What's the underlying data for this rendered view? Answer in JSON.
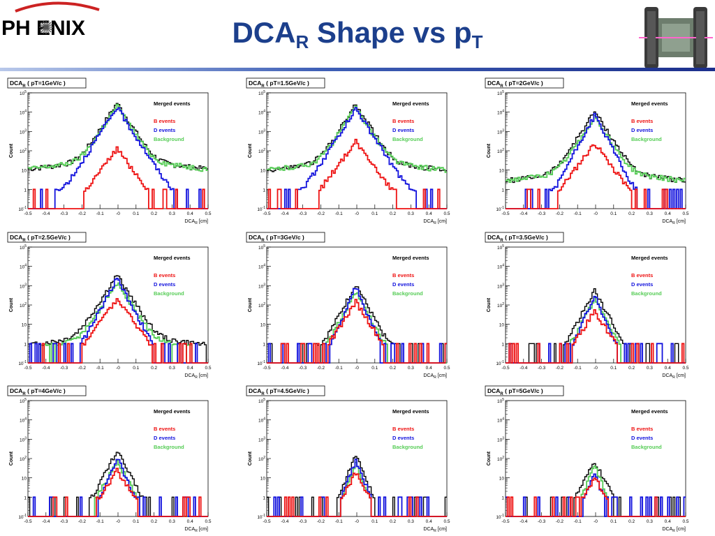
{
  "header": {
    "logo_text": "PH   ENIX",
    "title_main": "DCA",
    "title_sub1": "R",
    "title_mid": " Shape vs p",
    "title_sub2": "T"
  },
  "legend": {
    "merged": "Merged events",
    "b": "B events",
    "d": "D events",
    "bkg": "Background"
  },
  "colors": {
    "merged": "#000000",
    "b": "#ee1111",
    "d": "#1111dd",
    "bkg": "#55cc55",
    "title_blue": "#1c3f8c"
  },
  "chart_data": [
    {
      "type": "line",
      "title": "DCA_R ( pT=1GeV/c )",
      "title_main": "DCA",
      "title_sub": "R",
      "title_rest": "  ( pT=1GeV/c )",
      "xlabel": "DCA_R [cm]",
      "ylabel": "Count",
      "yscale": "log",
      "xlim": [
        -0.5,
        0.5
      ],
      "ylim": [
        0.1,
        100000
      ],
      "xticks": [
        "-0.5",
        "-0.4",
        "-0.3",
        "-0.2",
        "-0.1",
        "-0",
        "0.1",
        "0.2",
        "0.3",
        "0.4",
        "0.5"
      ],
      "yticks": [
        "10^-1",
        "1",
        "10",
        "10^2",
        "10^3",
        "10^4",
        "10^5"
      ],
      "series": {
        "merged": {
          "peak": 30000,
          "width": 0.03,
          "tail": 40,
          "tailw": 0.4
        },
        "b": {
          "peak": 130,
          "width": 0.035,
          "tail": 0,
          "tailw": 0.4
        },
        "d": {
          "peak": 18000,
          "width": 0.03,
          "tail": 1,
          "tailw": 0.4
        },
        "bkg": {
          "peak": 22000,
          "width": 0.03,
          "tail": 40,
          "tailw": 0.4
        }
      }
    },
    {
      "type": "line",
      "title": "DCA_R ( pT=1.5GeV/c )",
      "title_main": "DCA",
      "title_sub": "R",
      "title_rest": "  ( pT=1.5GeV/c )",
      "xlabel": "DCA_R [cm]",
      "ylabel": "Count",
      "yscale": "log",
      "xlim": [
        -0.5,
        0.5
      ],
      "ylim": [
        0.1,
        100000
      ],
      "xticks": [
        "-0.5",
        "-0.4",
        "-0.3",
        "-0.2",
        "-0.1",
        "-0",
        "0.1",
        "0.2",
        "0.3",
        "0.4",
        "0.5"
      ],
      "yticks": [
        "10^-1",
        "1",
        "10",
        "10^2",
        "10^3",
        "10^4",
        "10^5"
      ],
      "series": {
        "merged": {
          "peak": 25000,
          "width": 0.03,
          "tail": 35,
          "tailw": 0.4
        },
        "b": {
          "peak": 300,
          "width": 0.035,
          "tail": 0,
          "tailw": 0.4
        },
        "d": {
          "peak": 15000,
          "width": 0.03,
          "tail": 1,
          "tailw": 0.4
        },
        "bkg": {
          "peak": 18000,
          "width": 0.03,
          "tail": 35,
          "tailw": 0.4
        }
      }
    },
    {
      "type": "line",
      "title": "DCA_R ( pT=2GeV/c )",
      "title_main": "DCA",
      "title_sub": "R",
      "title_rest": "  ( pT=2GeV/c )",
      "xlabel": "DCA_R [cm]",
      "ylabel": "Count",
      "yscale": "log",
      "xlim": [
        -0.5,
        0.5
      ],
      "ylim": [
        0.1,
        100000
      ],
      "xticks": [
        "-0.5",
        "-0.4",
        "-0.3",
        "-0.2",
        "-0.1",
        "-0",
        "0.1",
        "0.2",
        "0.3",
        "0.4",
        "0.5"
      ],
      "yticks": [
        "10^-1",
        "1",
        "10",
        "10^2",
        "10^3",
        "10^4",
        "10^5"
      ],
      "series": {
        "merged": {
          "peak": 11000,
          "width": 0.03,
          "tail": 10,
          "tailw": 0.4
        },
        "b": {
          "peak": 250,
          "width": 0.035,
          "tail": 0,
          "tailw": 0.4
        },
        "d": {
          "peak": 7000,
          "width": 0.025,
          "tail": 0.5,
          "tailw": 0.4
        },
        "bkg": {
          "peak": 6000,
          "width": 0.03,
          "tail": 10,
          "tailw": 0.4
        }
      }
    },
    {
      "type": "line",
      "title": "DCA_R ( pT=2.5GeV/c )",
      "title_main": "DCA",
      "title_sub": "R",
      "title_rest": "  ( pT=2.5GeV/c )",
      "xlabel": "DCA_R [cm]",
      "ylabel": "Count",
      "yscale": "log",
      "xlim": [
        -0.5,
        0.5
      ],
      "ylim": [
        0.1,
        100000
      ],
      "xticks": [
        "-0.5",
        "-0.4",
        "-0.3",
        "-0.2",
        "-0.1",
        "-0",
        "0.1",
        "0.2",
        "0.3",
        "0.4",
        "0.5"
      ],
      "yticks": [
        "10^-1",
        "1",
        "10",
        "10^2",
        "10^3",
        "10^4",
        "10^5"
      ],
      "series": {
        "merged": {
          "peak": 3500,
          "width": 0.03,
          "tail": 3,
          "tailw": 0.4
        },
        "b": {
          "peak": 200,
          "width": 0.035,
          "tail": 0,
          "tailw": 0.4
        },
        "d": {
          "peak": 2500,
          "width": 0.025,
          "tail": 0.3,
          "tailw": 0.4
        },
        "bkg": {
          "peak": 1500,
          "width": 0.03,
          "tail": 2,
          "tailw": 0.4
        }
      }
    },
    {
      "type": "line",
      "title": "DCA_R ( pT=3GeV/c )",
      "title_main": "DCA",
      "title_sub": "R",
      "title_rest": "  ( pT=3GeV/c )",
      "xlabel": "DCA_R [cm]",
      "ylabel": "Count",
      "yscale": "log",
      "xlim": [
        -0.5,
        0.5
      ],
      "ylim": [
        0.1,
        100000
      ],
      "xticks": [
        "-0.5",
        "-0.4",
        "-0.3",
        "-0.2",
        "-0.1",
        "-0",
        "0.1",
        "0.2",
        "0.3",
        "0.4",
        "0.5"
      ],
      "yticks": [
        "10^-1",
        "1",
        "10",
        "10^2",
        "10^3",
        "10^4",
        "10^5"
      ],
      "series": {
        "merged": {
          "peak": 1200,
          "width": 0.025,
          "tail": 1,
          "tailw": 0.3
        },
        "b": {
          "peak": 150,
          "width": 0.03,
          "tail": 0,
          "tailw": 0.3
        },
        "d": {
          "peak": 900,
          "width": 0.02,
          "tail": 0.2,
          "tailw": 0.3
        },
        "bkg": {
          "peak": 500,
          "width": 0.025,
          "tail": 0.5,
          "tailw": 0.3
        }
      }
    },
    {
      "type": "line",
      "title": "DCA_R ( pT=3.5GeV/c )",
      "title_main": "DCA",
      "title_sub": "R",
      "title_rest": "  ( pT=3.5GeV/c )",
      "xlabel": "DCA_R [cm]",
      "ylabel": "Count",
      "yscale": "log",
      "xlim": [
        -0.5,
        0.5
      ],
      "ylim": [
        0.1,
        100000
      ],
      "xticks": [
        "-0.5",
        "-0.4",
        "-0.3",
        "-0.2",
        "-0.1",
        "-0",
        "0.1",
        "0.2",
        "0.3",
        "0.4",
        "0.5"
      ],
      "yticks": [
        "10^-1",
        "1",
        "10",
        "10^2",
        "10^3",
        "10^4",
        "10^5"
      ],
      "series": {
        "merged": {
          "peak": 600,
          "width": 0.025,
          "tail": 0.5,
          "tailw": 0.2
        },
        "b": {
          "peak": 50,
          "width": 0.03,
          "tail": 0,
          "tailw": 0.2
        },
        "d": {
          "peak": 350,
          "width": 0.02,
          "tail": 0.1,
          "tailw": 0.2
        },
        "bkg": {
          "peak": 200,
          "width": 0.025,
          "tail": 0.3,
          "tailw": 0.2
        }
      }
    },
    {
      "type": "line",
      "title": "DCA_R ( pT=4GeV/c )",
      "title_main": "DCA",
      "title_sub": "R",
      "title_rest": "  ( pT=4GeV/c )",
      "xlabel": "DCA_R [cm]",
      "ylabel": "Count",
      "yscale": "log",
      "xlim": [
        -0.5,
        0.5
      ],
      "ylim": [
        0.1,
        100000
      ],
      "xticks": [
        "-0.5",
        "-0.4",
        "-0.3",
        "-0.2",
        "-0.1",
        "-0",
        "0.1",
        "0.2",
        "0.3",
        "0.4",
        "0.5"
      ],
      "yticks": [
        "10^-1",
        "1",
        "10",
        "10^2",
        "10^3",
        "10^4",
        "10^5"
      ],
      "series": {
        "merged": {
          "peak": 250,
          "width": 0.025,
          "tail": 0.3,
          "tailw": 0.15
        },
        "b": {
          "peak": 25,
          "width": 0.03,
          "tail": 0,
          "tailw": 0.15
        },
        "d": {
          "peak": 120,
          "width": 0.02,
          "tail": 0.1,
          "tailw": 0.15
        },
        "bkg": {
          "peak": 80,
          "width": 0.025,
          "tail": 0.2,
          "tailw": 0.15
        }
      }
    },
    {
      "type": "line",
      "title": "DCA_R ( pT=4.5GeV/c )",
      "title_main": "DCA",
      "title_sub": "R",
      "title_rest": "  ( pT=4.5GeV/c )",
      "xlabel": "DCA_R [cm]",
      "ylabel": "Count",
      "yscale": "log",
      "xlim": [
        -0.5,
        0.5
      ],
      "ylim": [
        0.1,
        100000
      ],
      "xticks": [
        "-0.5",
        "-0.4",
        "-0.3",
        "-0.2",
        "-0.1",
        "-0",
        "0.1",
        "0.2",
        "0.3",
        "0.4",
        "0.5"
      ],
      "yticks": [
        "10^-1",
        "1",
        "10",
        "10^2",
        "10^3",
        "10^4",
        "10^5"
      ],
      "series": {
        "merged": {
          "peak": 150,
          "width": 0.02,
          "tail": 0.2,
          "tailw": 0.12
        },
        "b": {
          "peak": 20,
          "width": 0.025,
          "tail": 0,
          "tailw": 0.12
        },
        "d": {
          "peak": 70,
          "width": 0.02,
          "tail": 0.1,
          "tailw": 0.12
        },
        "bkg": {
          "peak": 50,
          "width": 0.02,
          "tail": 0.1,
          "tailw": 0.12
        }
      }
    },
    {
      "type": "line",
      "title": "DCA_R ( pT=5GeV/c )",
      "title_main": "DCA",
      "title_sub": "R",
      "title_rest": "  ( pT=5GeV/c )",
      "xlabel": "DCA_R [cm]",
      "ylabel": "Count",
      "yscale": "log",
      "xlim": [
        -0.5,
        0.5
      ],
      "ylim": [
        0.1,
        100000
      ],
      "xticks": [
        "-0.5",
        "-0.4",
        "-0.3",
        "-0.2",
        "-0.1",
        "-0",
        "0.1",
        "0.2",
        "0.3",
        "0.4",
        "0.5"
      ],
      "yticks": [
        "10^-1",
        "1",
        "10",
        "10^2",
        "10^3",
        "10^4",
        "10^5"
      ],
      "series": {
        "merged": {
          "peak": 70,
          "width": 0.025,
          "tail": 0.2,
          "tailw": 0.12
        },
        "b": {
          "peak": 12,
          "width": 0.025,
          "tail": 0,
          "tailw": 0.12
        },
        "d": {
          "peak": 15,
          "width": 0.02,
          "tail": 0.05,
          "tailw": 0.12
        },
        "bkg": {
          "peak": 40,
          "width": 0.02,
          "tail": 0.1,
          "tailw": 0.12
        }
      }
    }
  ]
}
